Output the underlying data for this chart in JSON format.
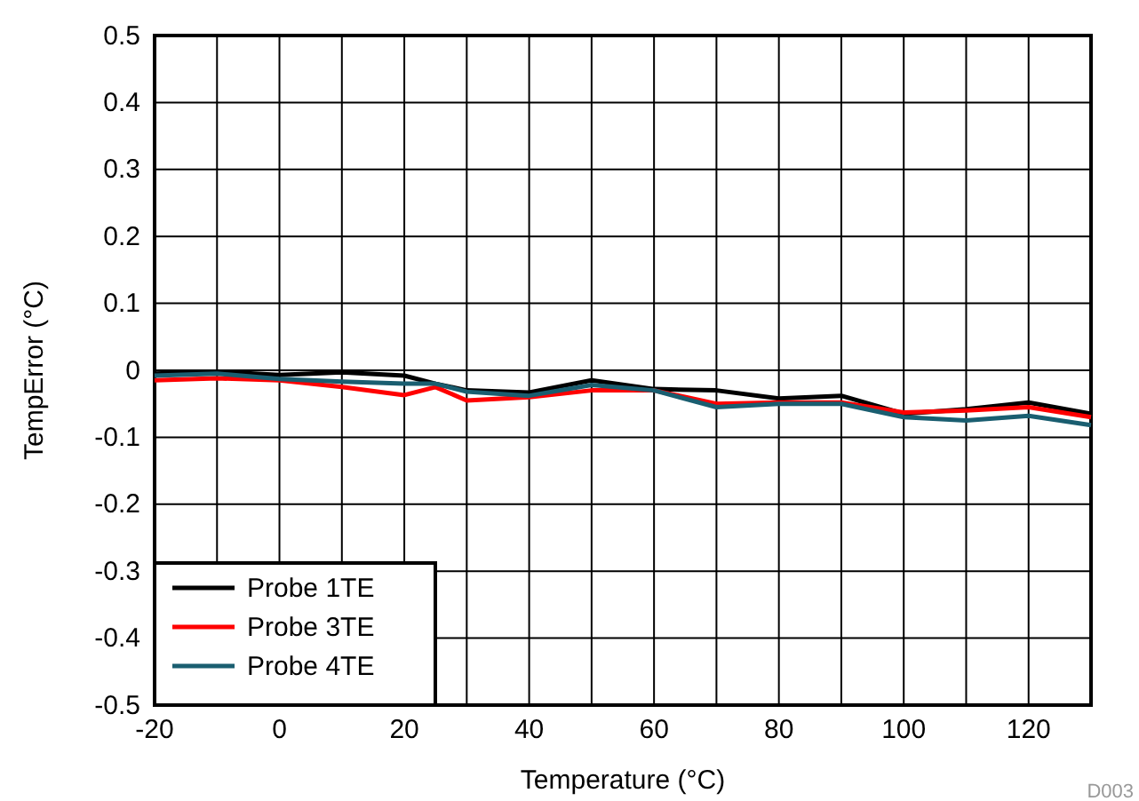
{
  "chart_data": {
    "type": "line",
    "xlabel": "Temperature (°C)",
    "ylabel": "TempError (°C)",
    "x": [
      -20,
      -10,
      0,
      10,
      20,
      25,
      30,
      40,
      50,
      60,
      70,
      80,
      90,
      100,
      110,
      120,
      130
    ],
    "series": [
      {
        "name": "Probe 1TE",
        "color": "#000000",
        "values": [
          -0.005,
          -0.002,
          -0.007,
          -0.003,
          -0.008,
          -0.02,
          -0.03,
          -0.033,
          -0.015,
          -0.028,
          -0.03,
          -0.042,
          -0.038,
          -0.065,
          -0.058,
          -0.048,
          -0.065
        ]
      },
      {
        "name": "Probe 3TE",
        "color": "#ff0000",
        "values": [
          -0.015,
          -0.012,
          -0.015,
          -0.025,
          -0.037,
          -0.025,
          -0.045,
          -0.04,
          -0.03,
          -0.03,
          -0.05,
          -0.048,
          -0.048,
          -0.063,
          -0.06,
          -0.055,
          -0.07
        ]
      },
      {
        "name": "Probe 4TE",
        "color": "#1a5e70",
        "values": [
          -0.008,
          -0.005,
          -0.013,
          -0.017,
          -0.02,
          -0.02,
          -0.032,
          -0.038,
          -0.022,
          -0.03,
          -0.055,
          -0.05,
          -0.05,
          -0.07,
          -0.075,
          -0.068,
          -0.082
        ]
      }
    ],
    "xlim": [
      -20,
      130
    ],
    "xticks": [
      -20,
      0,
      20,
      40,
      60,
      80,
      100,
      120
    ],
    "ylim": [
      -0.5,
      0.5
    ],
    "yticks": [
      -0.5,
      -0.4,
      -0.3,
      -0.2,
      -0.1,
      0,
      0.1,
      0.2,
      0.3,
      0.4,
      0.5
    ],
    "grid": true,
    "legend": "bottom left",
    "line_style": "solid",
    "marker": "none",
    "annotations": [
      "D003"
    ]
  }
}
